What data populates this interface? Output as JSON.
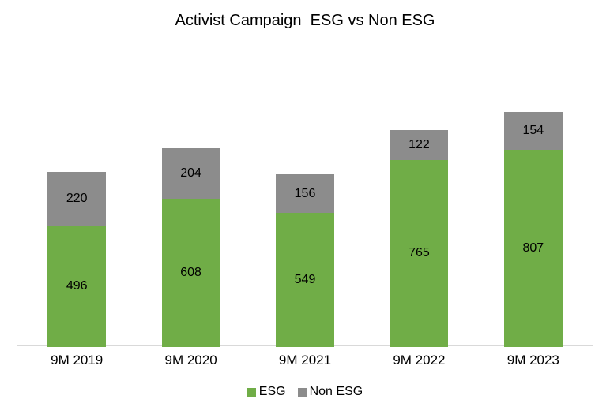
{
  "chart_data": {
    "type": "bar",
    "stacked": true,
    "title": "Activist Campaign  ESG vs Non ESG",
    "categories": [
      "9M 2019",
      "9M 2020",
      "9M 2021",
      "9M 2022",
      "9M 2023"
    ],
    "series": [
      {
        "name": "ESG",
        "color": "#70AD47",
        "values": [
          496,
          608,
          549,
          765,
          807
        ]
      },
      {
        "name": "Non ESG",
        "color": "#8C8C8C",
        "values": [
          220,
          204,
          156,
          122,
          154
        ]
      }
    ],
    "data_labels": true,
    "grid": false,
    "legend_position": "bottom",
    "ylim": [
      0,
      1200
    ],
    "axis_line_color": "#D9D9D9",
    "background_color": "#FFFFFF",
    "text_color": "#000000"
  }
}
